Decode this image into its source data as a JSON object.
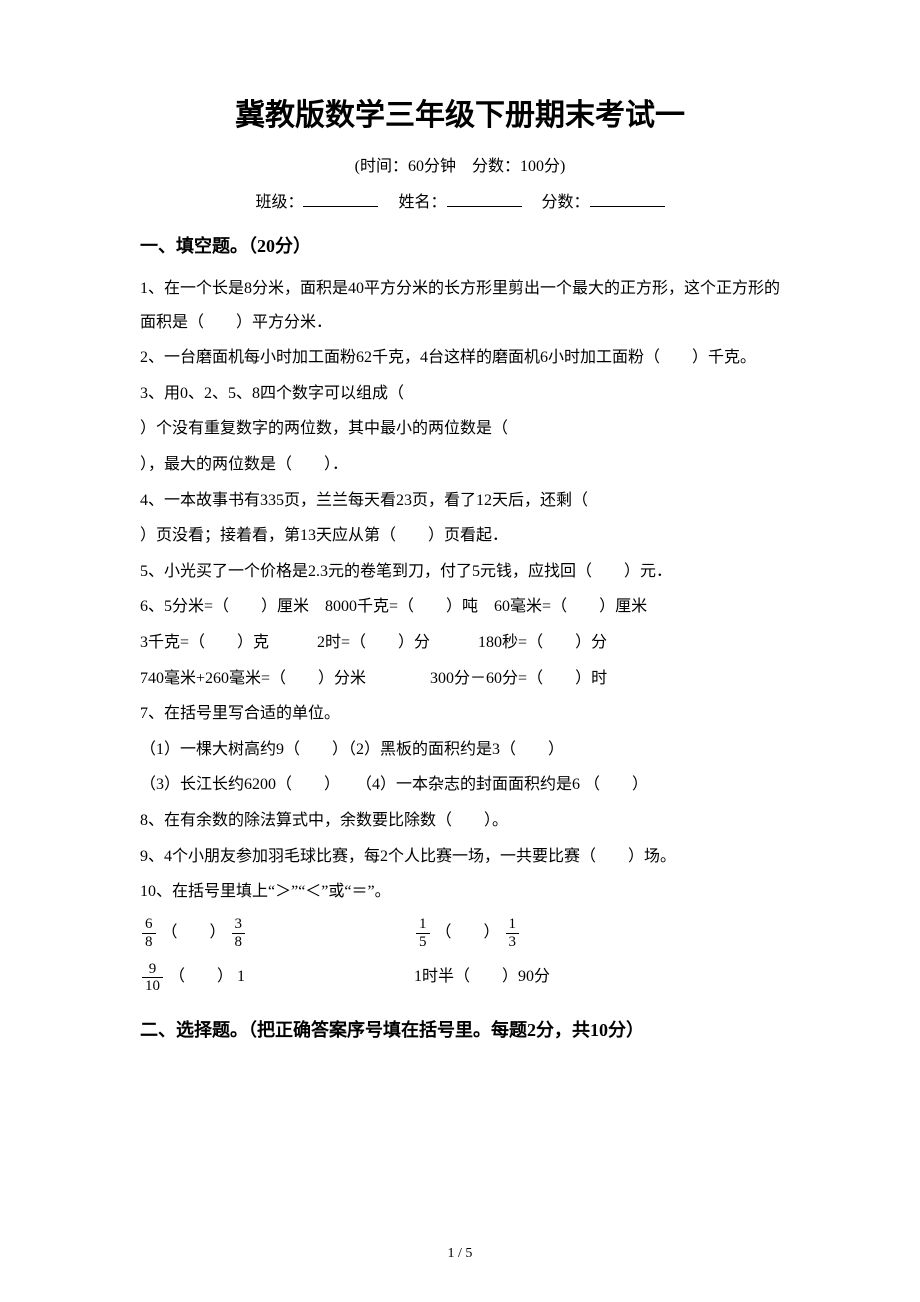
{
  "title": "冀教版数学三年级下册期末考试一",
  "subtitle": "(时间：60分钟 分数：100分)",
  "info": {
    "class_label": "班级：",
    "name_label": "姓名：",
    "score_label": "分数："
  },
  "section1": {
    "header": "一、填空题。（20分）",
    "q1": "1、在一个长是8分米，面积是40平方分米的长方形里剪出一个最大的正方形，这个正方形的面积是（  ）平方分米．",
    "q2": "2、一台磨面机每小时加工面粉62千克，4台这样的磨面机6小时加工面粉（  ）千克。",
    "q3a": "3、用0、2、5、8四个数字可以组成（",
    "q3b": "）个没有重复数字的两位数，其中最小的两位数是（",
    "q3c": "），最大的两位数是（  ）．",
    "q4a": "4、一本故事书有335页，兰兰每天看23页，看了12天后，还剩（",
    "q4b": "）页没看；接着看，第13天应从第（  ）页看起．",
    "q5": "5、小光买了一个价格是2.3元的卷笔到刀，付了5元钱，应找回（  ）元．",
    "q6a": "6、5分米=（  ）厘米 8000千克=（  ）吨 60毫米=（  ）厘米",
    "q6b": "3千克=（  ）克   2时=（  ）分   180秒=（  ）分",
    "q6c": "740毫米+260毫米=（  ）分米    300分－60分=（  ）时",
    "q7": "7、在括号里写合适的单位。",
    "q7a": "（1）一棵大树高约9（  ）（2）黑板的面积约是3（  ）",
    "q7b": "（3）长江长约6200（  ） （4）一本杂志的封面面积约是6 （  ）",
    "q8": "8、在有余数的除法算式中，余数要比除数（  ）。",
    "q9": "9、4个小朋友参加羽毛球比赛，每2个人比赛一场，一共要比赛（  ）场。",
    "q10": "10、在括号里填上“＞”“＜”或“＝”。",
    "f1": {
      "num": "6",
      "den": "8"
    },
    "f2": {
      "num": "3",
      "den": "8"
    },
    "f3": {
      "num": "1",
      "den": "5"
    },
    "f4": {
      "num": "1",
      "den": "3"
    },
    "f5": {
      "num": "9",
      "den": "10"
    },
    "blank_paren": "（  ）",
    "one": "1",
    "time_half": "1时半（  ）90分"
  },
  "section2": {
    "header": "二、选择题。（把正确答案序号填在括号里。每题2分，共10分）"
  },
  "page_num": "1 / 5"
}
